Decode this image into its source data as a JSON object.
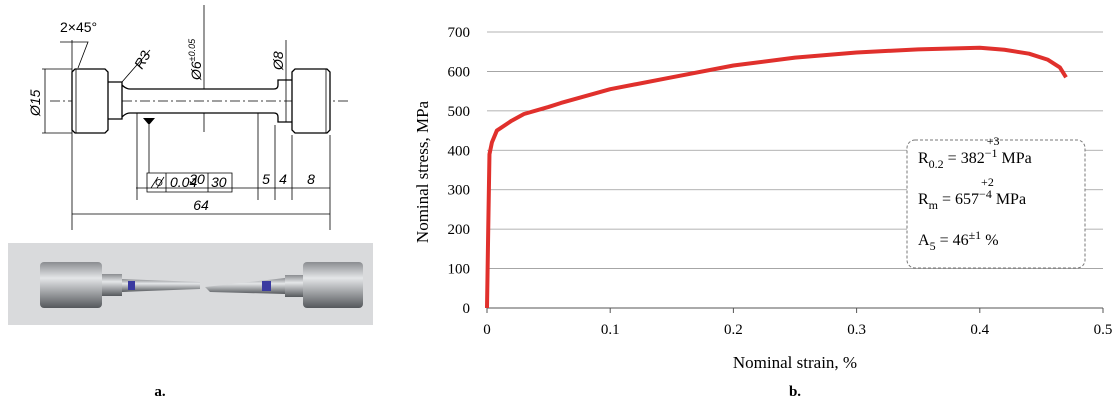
{
  "drawing": {
    "chamfer": "2×45°",
    "radius": "R3",
    "d_neck": "Ø6",
    "d_neck_tol": "±0.05",
    "d_step": "Ø8",
    "d_head": "Ø15",
    "tolerance_value": "0.04",
    "tolerance_length": "30",
    "dims": [
      "30",
      "5",
      "4",
      "8",
      "64"
    ]
  },
  "panel_labels": [
    "a.",
    "b."
  ],
  "chart_data": {
    "type": "line",
    "x_label": "Nominal strain, %",
    "y_label": "Nominal stress, MPa",
    "x": [
      0,
      0.001,
      0.002,
      0.004,
      0.008,
      0.02,
      0.03,
      0.05,
      0.06,
      0.1,
      0.15,
      0.2,
      0.25,
      0.3,
      0.35,
      0.4,
      0.42,
      0.44,
      0.455,
      0.465,
      0.47
    ],
    "series": [
      {
        "color": "#e0302c",
        "values": [
          0,
          200,
          390,
          420,
          450,
          475,
          492,
          510,
          520,
          555,
          585,
          615,
          635,
          648,
          656,
          660,
          655,
          645,
          630,
          610,
          585
        ]
      }
    ],
    "xlim": [
      0,
      0.5
    ],
    "xticks": [
      0,
      0.1,
      0.2,
      0.3,
      0.4,
      0.5
    ],
    "ylim": [
      0,
      700
    ],
    "yticks": [
      0,
      100,
      200,
      300,
      400,
      500,
      600,
      700
    ],
    "grid": true,
    "annotations": [
      {
        "main": "R",
        "sub": "0.2",
        "value": " = 382",
        "upper": "+3",
        "lower": "−1",
        "unit": " MPa"
      },
      {
        "main": "R",
        "sub": "m",
        "value": " = 657",
        "upper": "+2",
        "lower": "−4",
        "unit": " MPa"
      },
      {
        "main": "A",
        "sub": "5",
        "value": " = 46",
        "upper": "±1",
        "unit": " %"
      }
    ]
  }
}
